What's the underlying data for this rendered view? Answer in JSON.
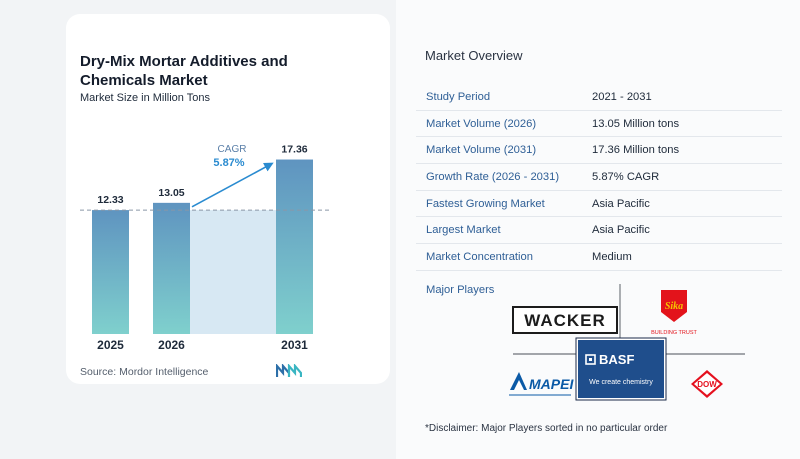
{
  "chart_data": {
    "type": "bar",
    "title": "Dry-Mix Mortar Additives and Chemicals Market",
    "subtitle": "Market Size in Million Tons",
    "categories": [
      "2025",
      "2026",
      "2031"
    ],
    "values": [
      12.33,
      13.05,
      17.36
    ],
    "value_labels": [
      "12.33",
      "13.05",
      "17.36"
    ],
    "cagr_label": "CAGR",
    "cagr_value": "5.87%",
    "colors": {
      "bar_top": "#5f94c0",
      "bar_bottom": "#7fd0cd",
      "fill_band": "#d7e8f3",
      "arrow": "#2a8bd0",
      "dashed_line": "#8a96a6"
    }
  },
  "source": "Source:  Mordor Intelligence",
  "overview": {
    "title": "Market Overview",
    "rows": [
      {
        "label": "Study Period",
        "value": "2021 - 2031"
      },
      {
        "label": "Market Volume (2026)",
        "value": "13.05 Million tons"
      },
      {
        "label": "Market Volume (2031)",
        "value": "17.36 Million tons"
      },
      {
        "label": "Growth Rate (2026 - 2031)",
        "value": "5.87% CAGR"
      },
      {
        "label": "Fastest Growing Market",
        "value": "Asia Pacific"
      },
      {
        "label": "Largest Market",
        "value": "Asia Pacific"
      },
      {
        "label": "Market Concentration",
        "value": "Medium"
      }
    ],
    "players_label": "Major Players",
    "players": {
      "wacker": "WACKER",
      "sika": "Sika",
      "sika_tagline": "BUILDING TRUST",
      "basf": "BASF",
      "basf_tagline": "We create chemistry",
      "mapei": "MAPEI",
      "dow": "DOW"
    }
  },
  "disclaimer": "*Disclaimer: Major Players sorted in no particular order"
}
